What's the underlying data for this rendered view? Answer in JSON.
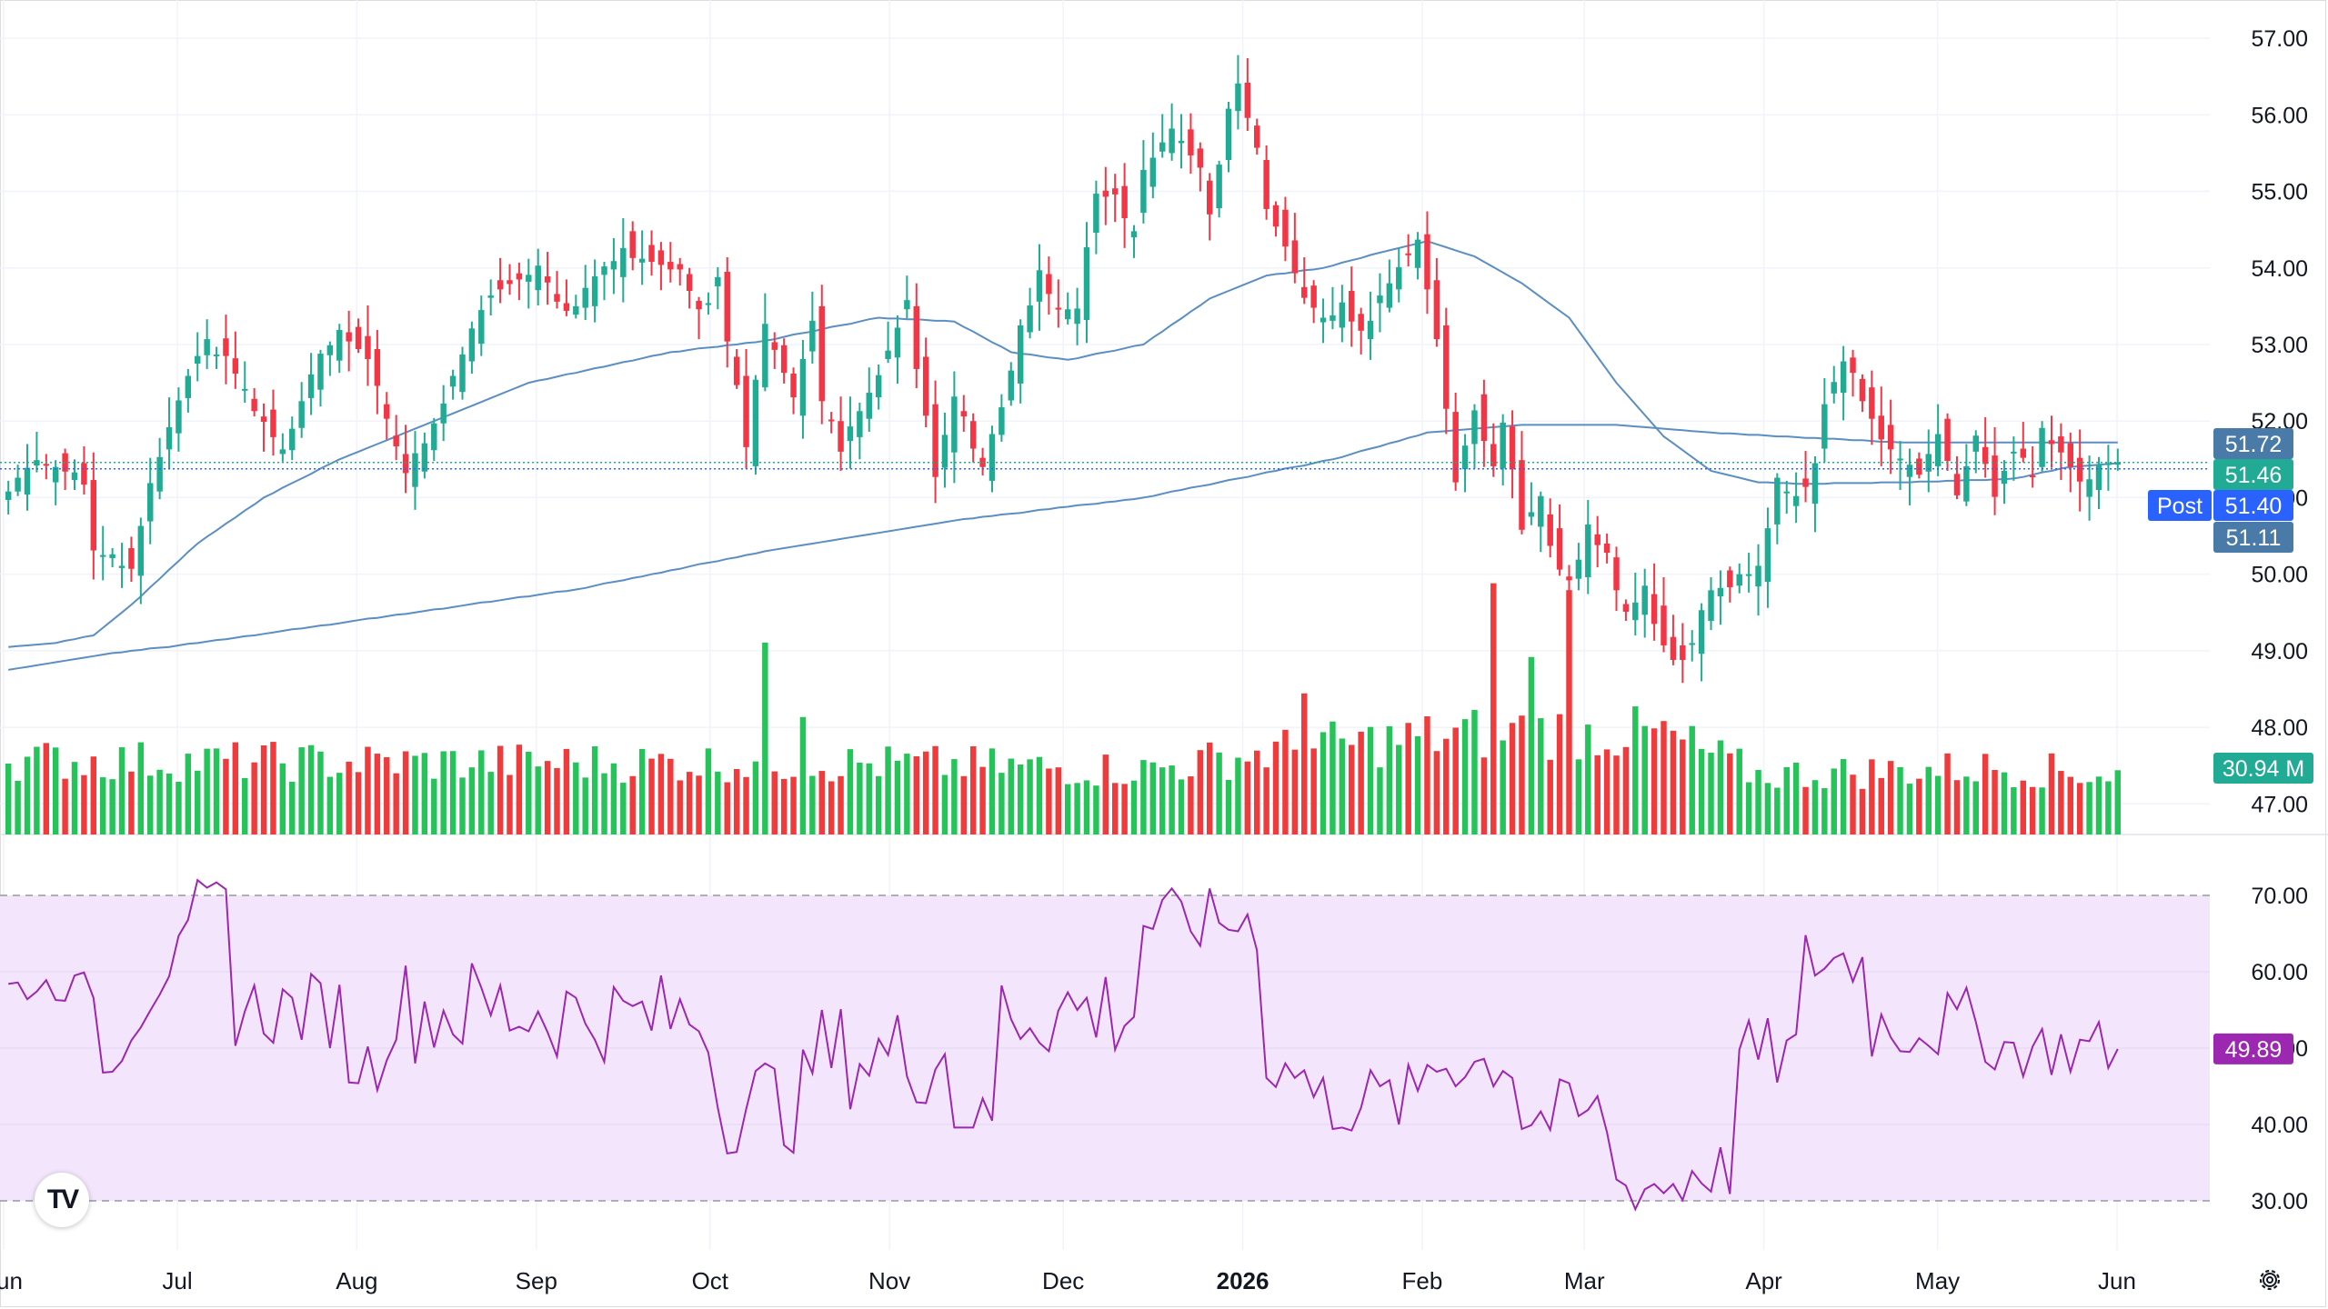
{
  "time_axis": {
    "labels": [
      {
        "text": "Jun",
        "day": 0,
        "bold": false
      },
      {
        "text": "Jul",
        "day": 30,
        "bold": false
      },
      {
        "text": "Aug",
        "day": 61,
        "bold": false
      },
      {
        "text": "Sep",
        "day": 92,
        "bold": false
      },
      {
        "text": "Oct",
        "day": 122,
        "bold": false
      },
      {
        "text": "Nov",
        "day": 153,
        "bold": false
      },
      {
        "text": "Dec",
        "day": 183,
        "bold": false
      },
      {
        "text": "2026",
        "day": 214,
        "bold": true
      },
      {
        "text": "Feb",
        "day": 245,
        "bold": false
      },
      {
        "text": "Mar",
        "day": 273,
        "bold": false
      },
      {
        "text": "Apr",
        "day": 304,
        "bold": false
      },
      {
        "text": "May",
        "day": 334,
        "bold": false
      },
      {
        "text": "Jun",
        "day": 365,
        "bold": false
      }
    ]
  },
  "price_axis": {
    "ticks": [
      "57.00",
      "56.00",
      "55.00",
      "54.00",
      "53.00",
      "52.00",
      "51.00",
      "50.00",
      "49.00",
      "48.00",
      "47.00"
    ]
  },
  "rsi_axis": {
    "ticks": [
      "70.00",
      "60.00",
      "50.00",
      "40.00",
      "30.00"
    ]
  },
  "badges": {
    "ma_upper": {
      "text": "51.72",
      "color": "#4a7aa8"
    },
    "last_price": {
      "text": "51.46",
      "color": "#22ab94"
    },
    "post_label": "Post",
    "post_price": {
      "text": "51.40",
      "color": "#2962ff"
    },
    "ma_lower": {
      "text": "51.11",
      "color": "#4a7aa8"
    },
    "volume": {
      "text": "30.94 M",
      "color": "#22ab94"
    },
    "rsi": {
      "text": "49.89",
      "color": "#9c27b0"
    }
  },
  "logo_text": "TV",
  "icons": {
    "settings": "settings-gear-icon",
    "logo": "tradingview-logo-icon"
  },
  "chart_data": {
    "type": "candlestick",
    "x_unit": "trading day (first shown day of June 2025 = 0)",
    "ylim": [
      46.6,
      57.5
    ],
    "candle_colors": {
      "up": "#22ab94",
      "down": "#f23645"
    },
    "candles": [],
    "moving_averages": [],
    "volume": {
      "colors": {
        "up": "#26c35a",
        "down": "#ef3b3b"
      },
      "values": []
    },
    "rsi": {
      "range": [
        0,
        100
      ],
      "upper_band": 70,
      "lower_band": 30,
      "color": "#9c27b0",
      "band_fill": "#f3e5fc",
      "values": []
    }
  }
}
